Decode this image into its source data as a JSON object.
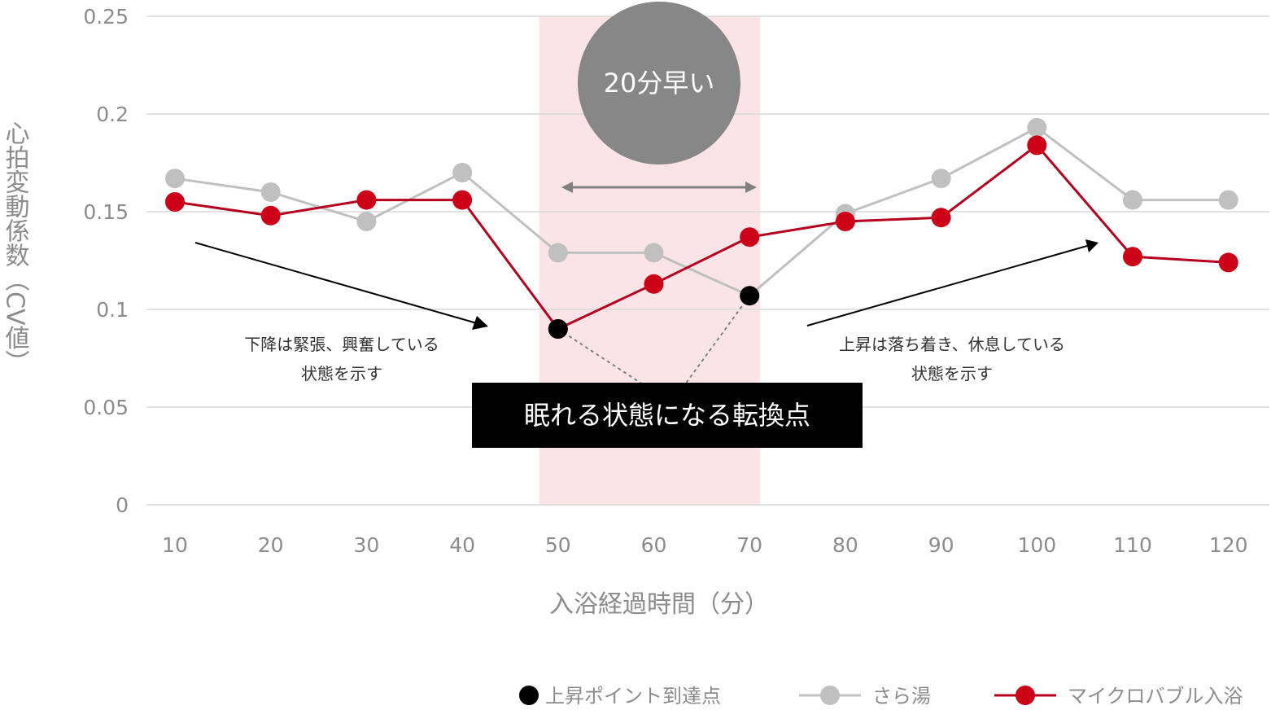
{
  "chart_data": {
    "type": "line",
    "x": [
      10,
      20,
      30,
      40,
      50,
      60,
      70,
      80,
      90,
      100,
      110,
      120
    ],
    "y_ticks": [
      "0.25",
      "0.2",
      "0.15",
      "0.1",
      "0.05",
      "0"
    ],
    "x_ticks": [
      "10",
      "20",
      "30",
      "40",
      "50",
      "60",
      "70",
      "80",
      "90",
      "100",
      "110",
      "120"
    ],
    "ylim": [
      0,
      0.25
    ],
    "xlabel": "入浴経過時間（分）",
    "ylabel": "心拍変動係数（CV値）",
    "grid": true,
    "legend_position": "bottom-right",
    "series": [
      {
        "name": "さら湯",
        "color": "#c0c0c0",
        "values": [
          0.167,
          0.16,
          0.145,
          0.17,
          0.129,
          0.129,
          0.107,
          0.149,
          0.167,
          0.193,
          0.156,
          0.156
        ]
      },
      {
        "name": "マイクロバブル入浴",
        "color": "#b5001f",
        "values": [
          0.155,
          0.148,
          0.156,
          0.156,
          0.09,
          0.113,
          0.137,
          0.145,
          0.147,
          0.184,
          0.127,
          0.124
        ]
      }
    ],
    "rise_points": {
      "name": "上昇ポイント到達点",
      "color": "#000000",
      "points": [
        {
          "x": 50,
          "y": 0.09
        },
        {
          "x": 70,
          "y": 0.107
        }
      ]
    },
    "highlight_range": {
      "x": [
        50,
        70
      ],
      "color": "#fbe4e8"
    },
    "annotations": {
      "circle_label": "20分早い",
      "box_label": "眠れる状態になる転換点",
      "left_note_line1": "下降は緊張、興奮している",
      "left_note_line2": "状態を示す",
      "right_note_line1": "上昇は落ち着き、休息している",
      "right_note_line2": "状態を示す"
    }
  },
  "colors": {
    "grid": "#d9d9d9",
    "tick_text": "#8c8c8c",
    "circle": "#878787",
    "box": "#000000",
    "arrow_gray": "#808080"
  }
}
